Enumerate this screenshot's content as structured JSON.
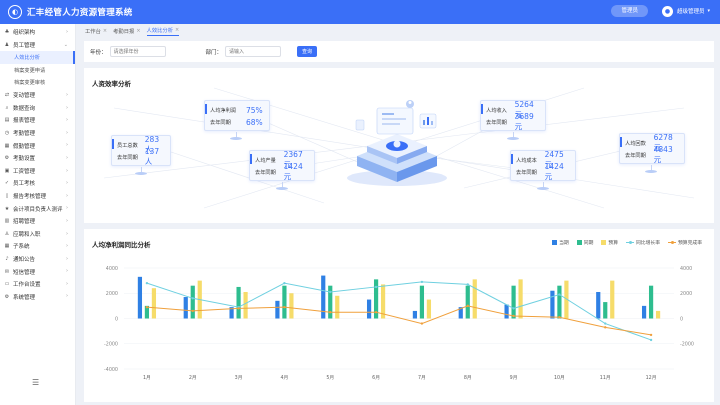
{
  "app": {
    "title": "汇丰经管人力资源管理系统",
    "role_button": "管理员",
    "username": "超级管理员"
  },
  "sidebar": {
    "items": [
      {
        "label": "组织架构",
        "icon": "org-icon",
        "chevron": "right"
      },
      {
        "label": "员工管理",
        "icon": "person-icon",
        "chevron": "down"
      },
      {
        "label": "变动管理",
        "icon": "swap-icon",
        "chevron": "right"
      },
      {
        "label": "数据查询",
        "icon": "search-icon",
        "chevron": "right"
      },
      {
        "label": "报表管理",
        "icon": "report-icon",
        "chevron": "right"
      },
      {
        "label": "考勤管理",
        "icon": "clock-icon",
        "chevron": "right"
      },
      {
        "label": "假勤管理",
        "icon": "calendar-icon",
        "chevron": "right"
      },
      {
        "label": "考勤设置",
        "icon": "settings-icon",
        "chevron": "right"
      },
      {
        "label": "工资管理",
        "icon": "wallet-icon",
        "chevron": "right"
      },
      {
        "label": "员工考核",
        "icon": "check-icon",
        "chevron": "right"
      },
      {
        "label": "报告考核管理",
        "icon": "doc-icon",
        "chevron": "right"
      },
      {
        "label": "会计项目负责人测评",
        "icon": "star-icon",
        "chevron": "right"
      },
      {
        "label": "招聘管理",
        "icon": "briefcase-icon",
        "chevron": "right"
      },
      {
        "label": "应聘和入职",
        "icon": "user-add-icon",
        "chevron": "right"
      },
      {
        "label": "子系统",
        "icon": "grid-icon",
        "chevron": "right"
      },
      {
        "label": "通知公告",
        "icon": "bell-icon",
        "chevron": "right"
      },
      {
        "label": "短信管理",
        "icon": "message-icon",
        "chevron": "right"
      },
      {
        "label": "工作台设置",
        "icon": "desk-icon",
        "chevron": "right"
      },
      {
        "label": "系统管理",
        "icon": "gear-icon",
        "chevron": "right"
      }
    ],
    "subitems": [
      {
        "label": "人效比分析",
        "active": true
      },
      {
        "label": "档案变更申请",
        "active": false
      },
      {
        "label": "档案变更审核",
        "active": false
      }
    ]
  },
  "tabs": [
    {
      "label": "工作台",
      "active": false
    },
    {
      "label": "考勤日报",
      "active": false
    },
    {
      "label": "人效比分析",
      "active": true
    }
  ],
  "filters": {
    "year_label": "年份：",
    "year_placeholder": "请选择年份",
    "dept_label": "部门：",
    "dept_placeholder": "请输入",
    "query_button": "查询"
  },
  "efficiency": {
    "title": "人资效率分析",
    "kpis": [
      {
        "id": "headcount",
        "rows": [
          {
            "label": "员工总数",
            "value": "283人"
          },
          {
            "label": "去年同期",
            "value": "137人"
          }
        ]
      },
      {
        "id": "profit",
        "rows": [
          {
            "label": "人均净利润",
            "value": "75%"
          },
          {
            "label": "去年同期",
            "value": "68%"
          }
        ]
      },
      {
        "id": "output",
        "rows": [
          {
            "label": "人均产量",
            "value": "2367元"
          },
          {
            "label": "去年同期",
            "value": "1424元"
          }
        ]
      },
      {
        "id": "income",
        "rows": [
          {
            "label": "人均收入",
            "value": "5264元"
          },
          {
            "label": "去年同期",
            "value": "3689元"
          }
        ]
      },
      {
        "id": "cost",
        "rows": [
          {
            "label": "人均成本",
            "value": "2475元"
          },
          {
            "label": "去年同期",
            "value": "1424元"
          }
        ]
      },
      {
        "id": "payback",
        "rows": [
          {
            "label": "人均回款",
            "value": "6278元"
          },
          {
            "label": "去年同期",
            "value": "4843元"
          }
        ]
      }
    ]
  },
  "chart_data": {
    "type": "bar",
    "title": "人均净利润同比分析",
    "categories": [
      "1月",
      "2月",
      "3月",
      "4月",
      "5月",
      "6月",
      "7月",
      "8月",
      "9月",
      "10月",
      "11月",
      "12月"
    ],
    "ylim": [
      -4000,
      4000
    ],
    "y2lim": [
      -4000,
      4000
    ],
    "yticks": [
      4000,
      2000,
      0,
      -2000,
      -4000
    ],
    "y2ticks": [
      4000,
      2000,
      0,
      -2000
    ],
    "series": [
      {
        "name": "当期",
        "type": "bar",
        "color": "#2f80e4",
        "values": [
          3300,
          1700,
          900,
          1400,
          3400,
          1500,
          600,
          900,
          1100,
          2200,
          2100,
          1000
        ]
      },
      {
        "name": "同期",
        "type": "bar",
        "color": "#2ebd8f",
        "values": [
          1000,
          2600,
          2500,
          2600,
          2600,
          3100,
          2600,
          2600,
          2600,
          2600,
          1300,
          2600
        ]
      },
      {
        "name": "预算",
        "type": "bar",
        "color": "#f6dc6a",
        "values": [
          2400,
          3000,
          2100,
          2000,
          1800,
          2700,
          1500,
          3100,
          3100,
          3000,
          3000,
          600
        ]
      },
      {
        "name": "同比增长率",
        "type": "line",
        "color": "#6fd0e0",
        "values": [
          2800,
          1600,
          900,
          2800,
          2100,
          2500,
          2900,
          2700,
          800,
          1900,
          -400,
          -1700
        ]
      },
      {
        "name": "预算完成率",
        "type": "line",
        "color": "#f0a03c",
        "values": [
          900,
          600,
          800,
          900,
          500,
          500,
          -400,
          1000,
          200,
          100,
          -700,
          -1300
        ]
      }
    ]
  }
}
